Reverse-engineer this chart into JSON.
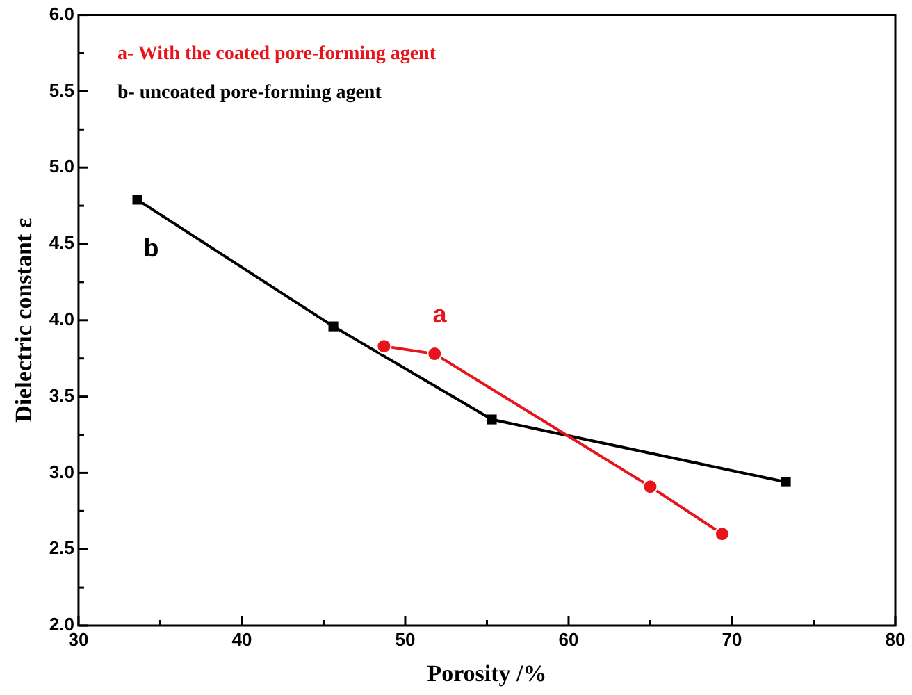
{
  "chart_data": {
    "type": "line",
    "xlabel": "Porosity /%",
    "ylabel": "Dielectric constant ε",
    "xlim": [
      30,
      80
    ],
    "xticks": [
      30,
      {
        "value": 35,
        "label": null
      },
      40,
      {
        "value": 45,
        "label": null
      },
      50,
      {
        "value": 55,
        "label": null
      },
      60,
      {
        "value": 65,
        "label": null
      },
      70,
      {
        "value": 75,
        "label": null
      },
      80
    ],
    "ylim": [
      2,
      6
    ],
    "yticks": [
      "2.0",
      {
        "value": 2.25,
        "label": null
      },
      {
        "value": 2.5,
        "label": "2.5"
      },
      {
        "value": 2.75,
        "label": null
      },
      {
        "value": 3,
        "label": "3.0"
      },
      {
        "value": 3.25,
        "label": null
      },
      {
        "value": 3.5,
        "label": "3.5"
      },
      {
        "value": 3.75,
        "label": null
      },
      {
        "value": 4,
        "label": "4.0"
      },
      {
        "value": 4.25,
        "label": null
      },
      {
        "value": 4.5,
        "label": "4.5"
      },
      {
        "value": 4.75,
        "label": null
      },
      {
        "value": 5,
        "label": "5.0"
      },
      {
        "value": 5.25,
        "label": null
      },
      {
        "value": 5.5,
        "label": "5.5"
      },
      {
        "value": 5.75,
        "label": null
      },
      {
        "value": 6,
        "label": "6.0"
      }
    ],
    "grid": false,
    "legend": "top left",
    "line_style": "solid",
    "series": [
      {
        "name": "a- With the coated pore-forming agent",
        "color": "#e8141c",
        "marker": "circle",
        "x": [
          48.7,
          51.8,
          65.0,
          69.4
        ],
        "values": [
          3.83,
          3.78,
          2.91,
          2.6
        ]
      },
      {
        "name": "b- uncoated pore-forming agent",
        "color": "#000000",
        "marker": "square",
        "x": [
          33.6,
          45.6,
          55.3,
          73.3
        ],
        "values": [
          4.79,
          3.96,
          3.35,
          2.94
        ]
      }
    ],
    "annotations": [
      "a",
      "b"
    ]
  }
}
